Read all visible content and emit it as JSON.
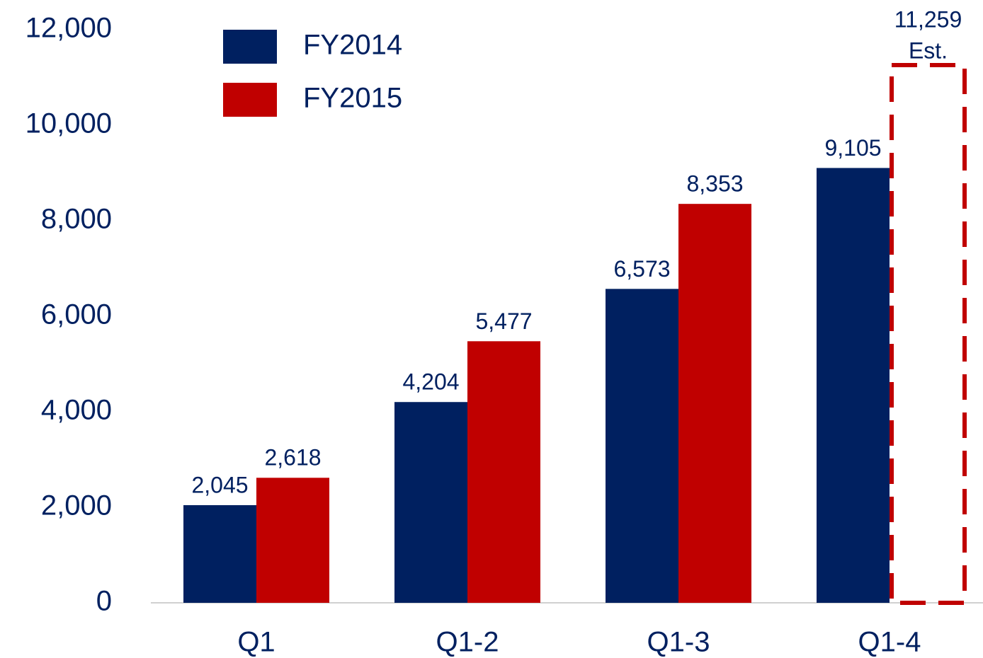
{
  "chart_data": {
    "type": "bar",
    "categories": [
      "Q1",
      "Q1-2",
      "Q1-3",
      "Q1-4"
    ],
    "series": [
      {
        "name": "FY2014",
        "color": "#002060",
        "values": [
          2045,
          4204,
          6573,
          9105
        ],
        "value_labels": [
          "2,045",
          "4,204",
          "6,573",
          "9,105"
        ]
      },
      {
        "name": "FY2015",
        "color": "#c00000",
        "values": [
          2618,
          5477,
          8353,
          11259
        ],
        "value_labels": [
          "2,618",
          "5,477",
          "8,353",
          "11,259"
        ],
        "dashed": [
          false,
          false,
          false,
          true
        ]
      }
    ],
    "annotations": [
      "Est."
    ],
    "ylim": [
      0,
      12000
    ],
    "yticks": [
      0,
      {
        "value": 2000,
        "label": "2,000"
      },
      {
        "value": 4000,
        "label": "4,000"
      },
      {
        "value": 6000,
        "label": "6,000"
      },
      {
        "value": 8000,
        "label": "8,000"
      },
      {
        "value": 10000,
        "label": "10,000"
      },
      {
        "value": 12000,
        "label": "12,000"
      }
    ],
    "grid": false,
    "legend": "top-left"
  }
}
